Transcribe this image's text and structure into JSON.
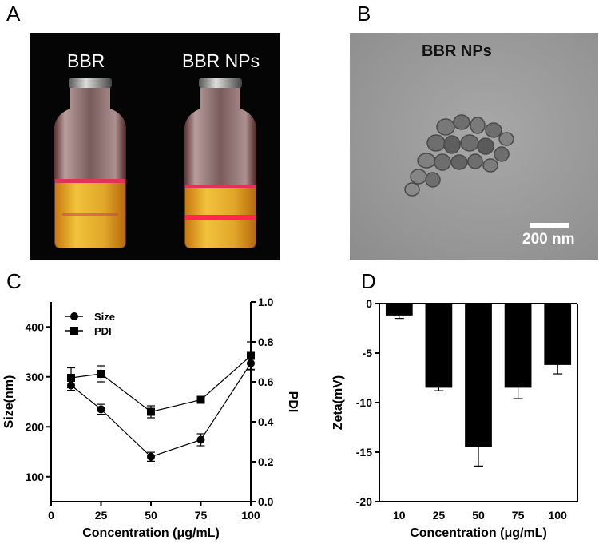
{
  "panels": {
    "a": {
      "letter": "A",
      "vial_left_label": "BBR",
      "vial_right_label": "BBR NPs"
    },
    "b": {
      "letter": "B",
      "label": "BBR NPs",
      "scalebar_label": "200 nm"
    },
    "c": {
      "letter": "C"
    },
    "d": {
      "letter": "D"
    }
  },
  "chart_data": [
    {
      "type": "line",
      "panel": "C",
      "xlabel": "Concentration (μg/mL)",
      "ylabel": "Size(nm)",
      "y2label": "PDI",
      "xlim": [
        0,
        100
      ],
      "ylim": [
        50,
        450
      ],
      "y2lim": [
        0.0,
        1.0
      ],
      "xticks": [
        0,
        25,
        50,
        75,
        100
      ],
      "yticks": [
        100,
        200,
        300,
        400
      ],
      "y2ticks": [
        0.0,
        0.2,
        0.4,
        0.6,
        0.8,
        1.0
      ],
      "x": [
        10,
        25,
        50,
        75,
        100
      ],
      "legend_position": "top-left",
      "series": [
        {
          "name": "Size",
          "marker": "circle",
          "axis": "left",
          "values": [
            283,
            235,
            140,
            174,
            327
          ],
          "errors": [
            10,
            10,
            9,
            12,
            12
          ]
        },
        {
          "name": "PDI",
          "marker": "square",
          "axis": "right",
          "values": [
            0.62,
            0.64,
            0.45,
            0.51,
            0.73
          ],
          "errors": [
            0.05,
            0.04,
            0.03,
            0.01,
            0.07
          ]
        }
      ]
    },
    {
      "type": "bar",
      "panel": "D",
      "xlabel": "Concentration (μg/mL)",
      "ylabel": "Zeta(mV)",
      "categories": [
        "10",
        "25",
        "50",
        "75",
        "100"
      ],
      "values": [
        -1.2,
        -8.5,
        -14.5,
        -8.5,
        -6.2
      ],
      "errors": [
        0.3,
        0.3,
        1.9,
        1.1,
        0.9
      ],
      "ylim": [
        -20,
        0
      ],
      "yticks": [
        0,
        -5,
        -10,
        -15,
        -20
      ],
      "bar_color": "#000000"
    }
  ]
}
